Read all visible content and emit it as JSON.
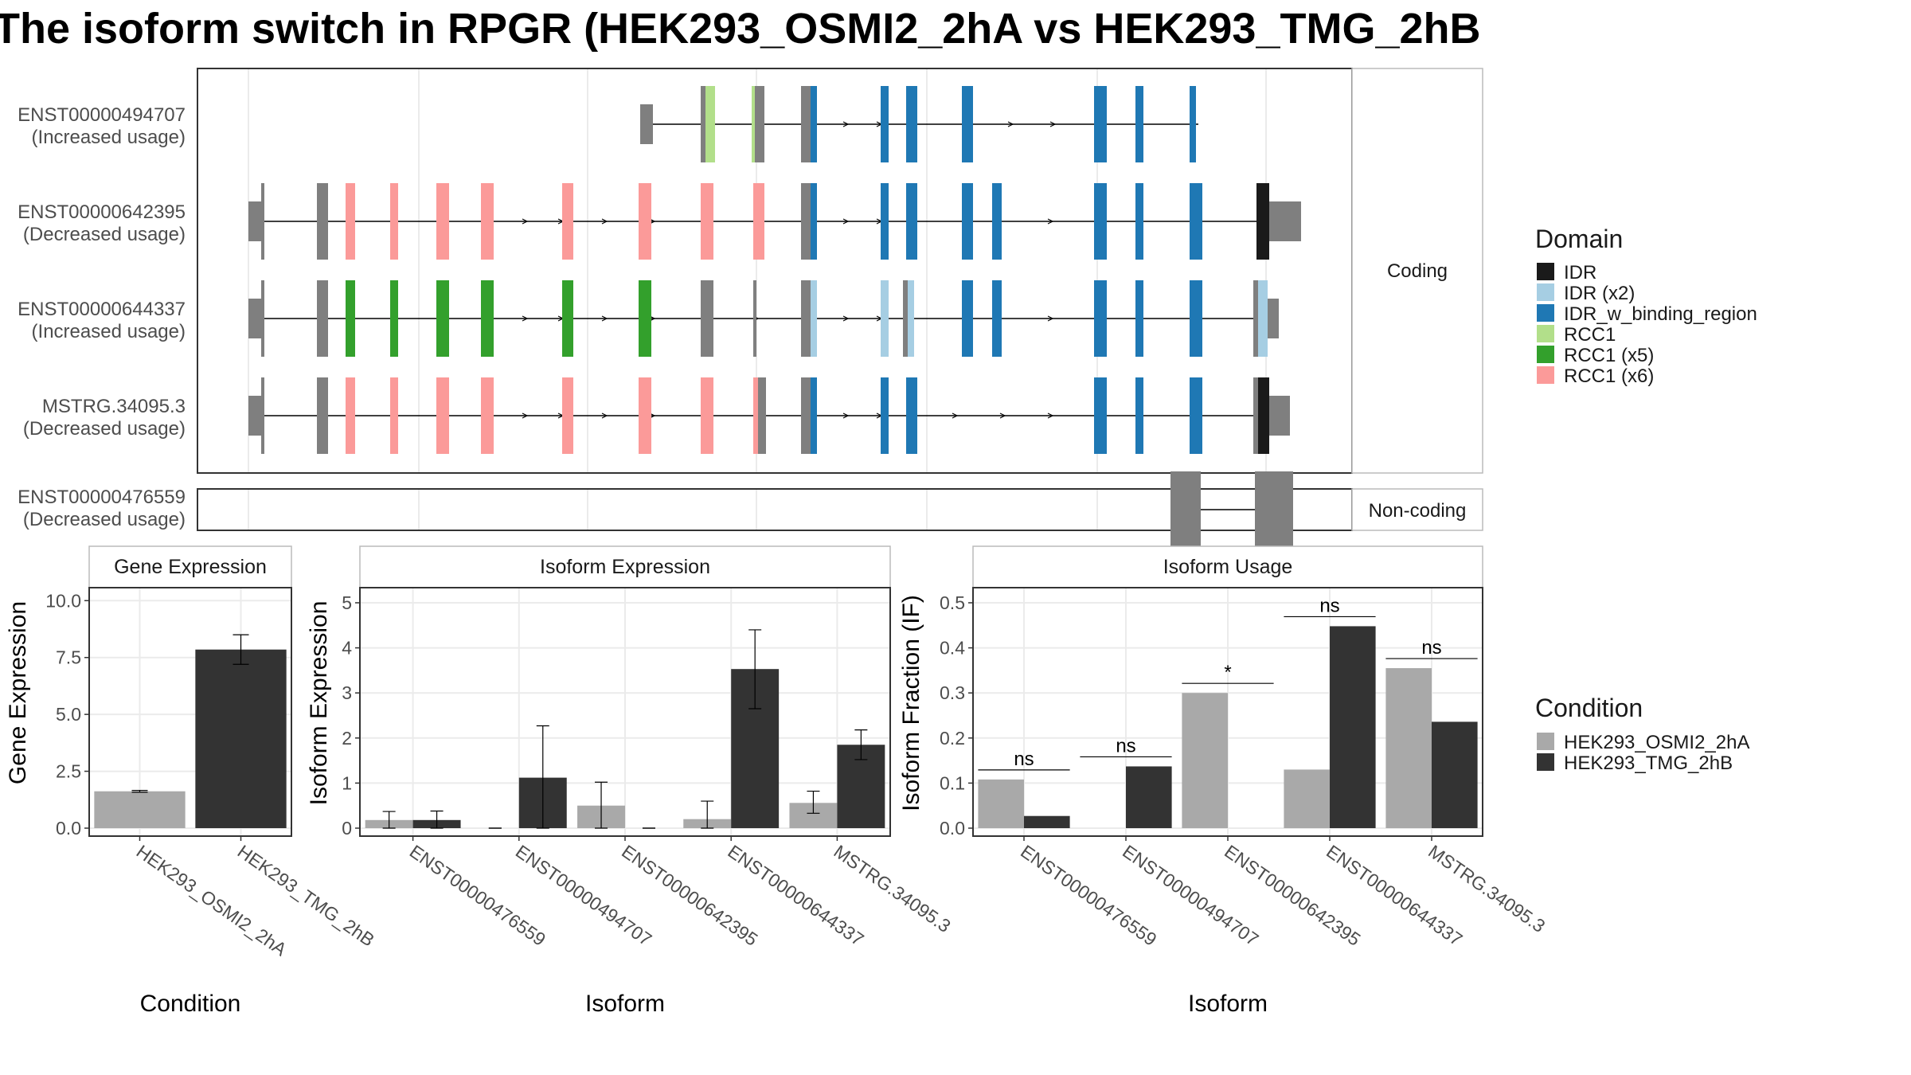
{
  "title": "The isoform switch in RPGR (HEK293_OSMI2_2hA vs HEK293_TMG_2hB",
  "colors": {
    "IDR": "#1a1a1a",
    "IDR (x2)": "#a6cee3",
    "IDR_w_binding_region": "#1f78b4",
    "RCC1": "#b2df8a",
    "RCC1 (x5)": "#33a02c",
    "RCC1 (x6)": "#fb9a99",
    "exon": "#7f7f7f",
    "cond1": "#a9a9a9",
    "cond2": "#333333"
  },
  "structure": {
    "coding_label": "Coding",
    "noncoding_label": "Non-coding",
    "domain_legend_title": "Domain",
    "domain_legend": [
      "IDR",
      "IDR (x2)",
      "IDR_w_binding_region",
      "RCC1",
      "RCC1 (x5)",
      "RCC1 (x6)"
    ],
    "transcripts": [
      {
        "id": "ENST00000494707",
        "usage": "(Increased usage)"
      },
      {
        "id": "ENST00000642395",
        "usage": "(Decreased usage)"
      },
      {
        "id": "ENST00000644337",
        "usage": "(Increased usage)"
      },
      {
        "id": "MSTRG.34095.3",
        "usage": "(Decreased usage)"
      },
      {
        "id": "ENST00000476559",
        "usage": "(Decreased usage)"
      }
    ]
  },
  "condition_legend": {
    "title": "Condition",
    "items": [
      "HEK293_OSMI2_2hA",
      "HEK293_TMG_2hB"
    ]
  },
  "chart_data": [
    {
      "type": "bar",
      "panel_title": "Gene Expression",
      "xlabel": "Condition",
      "ylabel": "Gene Expression",
      "ylim": [
        0,
        10.5
      ],
      "yticks": [
        "0.0",
        "2.5",
        "5.0",
        "7.5",
        "10.0"
      ],
      "categories": [
        "HEK293_OSMI2_2hA",
        "HEK293_TMG_2hB"
      ],
      "values": [
        1.62,
        7.85
      ],
      "errors": [
        [
          1.58,
          1.66
        ],
        [
          7.2,
          8.5
        ]
      ]
    },
    {
      "type": "bar",
      "panel_title": "Isoform Expression",
      "xlabel": "Isoform",
      "ylabel": "Isoform Expression",
      "ylim": [
        0,
        5.3
      ],
      "yticks": [
        "0",
        "1",
        "2",
        "3",
        "4",
        "5"
      ],
      "categories": [
        "ENST00000476559",
        "ENST00000494707",
        "ENST00000642395",
        "ENST00000644337",
        "MSTRG.34095.3"
      ],
      "series": [
        {
          "name": "HEK293_OSMI2_2hA",
          "values": [
            0.18,
            0.0,
            0.5,
            0.2,
            0.56
          ],
          "errors": [
            [
              0.0,
              0.37
            ],
            [
              0.0,
              0.0
            ],
            [
              0.0,
              1.02
            ],
            [
              0.0,
              0.6
            ],
            [
              0.33,
              0.82
            ]
          ]
        },
        {
          "name": "HEK293_TMG_2hB",
          "values": [
            0.18,
            1.12,
            0.0,
            3.53,
            1.85
          ],
          "errors": [
            [
              0.0,
              0.38
            ],
            [
              0.0,
              2.27
            ],
            [
              0.0,
              0.0
            ],
            [
              2.65,
              4.4
            ],
            [
              1.52,
              2.18
            ]
          ]
        }
      ]
    },
    {
      "type": "bar",
      "panel_title": "Isoform Usage",
      "xlabel": "Isoform",
      "ylabel": "Isoform Fraction (IF)",
      "ylim": [
        0,
        0.53
      ],
      "yticks": [
        "0.0",
        "0.1",
        "0.2",
        "0.3",
        "0.4",
        "0.5"
      ],
      "categories": [
        "ENST00000476559",
        "ENST00000494707",
        "ENST00000642395",
        "ENST00000644337",
        "MSTRG.34095.3"
      ],
      "series": [
        {
          "name": "HEK293_OSMI2_2hA",
          "values": [
            0.108,
            0.0,
            0.3,
            0.13,
            0.355
          ]
        },
        {
          "name": "HEK293_TMG_2hB",
          "values": [
            0.027,
            0.137,
            0.0,
            0.448,
            0.236
          ]
        }
      ],
      "significance": [
        "ns",
        "ns",
        "*",
        "ns",
        "ns"
      ]
    }
  ]
}
